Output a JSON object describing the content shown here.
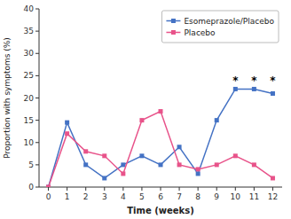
{
  "chart_data": {
    "type": "line",
    "x": [
      0,
      1,
      2,
      3,
      4,
      5,
      6,
      7,
      8,
      9,
      10,
      11,
      12
    ],
    "series": [
      {
        "name": "Esomeprazole/Placebo",
        "color": "#4472c4",
        "marker": "square",
        "line_style": "solid",
        "values": [
          0,
          14.5,
          5,
          2,
          5,
          7,
          5,
          9,
          3,
          15,
          22,
          22,
          21
        ]
      },
      {
        "name": "Placebo",
        "color": "#e8538a",
        "marker": "square",
        "line_style": "solid",
        "values": [
          0,
          12,
          8,
          7,
          3,
          15,
          17,
          5,
          4,
          5,
          7,
          5,
          2
        ]
      }
    ],
    "xlabel": "Time (weeks)",
    "ylabel": "Proportion with symptoms (%)",
    "xlim": [
      -0.5,
      12.5
    ],
    "xticks": [
      0,
      1,
      2,
      3,
      4,
      5,
      6,
      7,
      8,
      9,
      10,
      11,
      12
    ],
    "ylim": [
      0,
      40
    ],
    "yticks": [
      0,
      5,
      10,
      15,
      20,
      25,
      30,
      35,
      40
    ],
    "annotations": [
      {
        "text": "*",
        "x": 10,
        "y": 23.5
      },
      {
        "text": "*",
        "x": 11,
        "y": 23.5
      },
      {
        "text": "*",
        "x": 12,
        "y": 23.5
      }
    ],
    "grid": false,
    "legend": "upper right"
  }
}
